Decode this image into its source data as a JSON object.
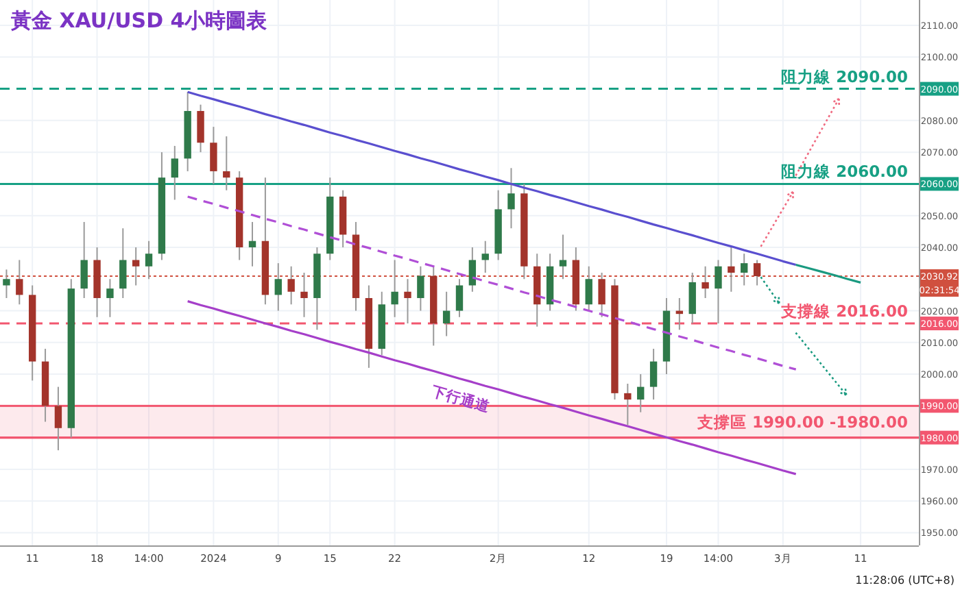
{
  "chart_data": {
    "type": "candlestick",
    "title": "黃金 XAU/USD 4小時圖表",
    "categories": [
      null,
      null,
      "11",
      null,
      null,
      null,
      null,
      "18",
      null,
      null,
      null,
      "14:00",
      null,
      null,
      null,
      null,
      "2024",
      null,
      null,
      null,
      null,
      "9",
      null,
      null,
      null,
      "15",
      null,
      null,
      null,
      null,
      "22",
      null,
      null,
      null,
      null,
      null,
      null,
      null,
      "2月",
      null,
      null,
      null,
      null,
      null,
      null,
      "12",
      null,
      null,
      null,
      null,
      null,
      "19",
      null,
      null,
      null,
      "14:00",
      null,
      null,
      null,
      null,
      "3月",
      null,
      null,
      null,
      null,
      null,
      "11",
      null,
      null,
      null,
      null
    ],
    "ohlc": [
      [
        2028,
        2033,
        2024,
        2030
      ],
      [
        2030,
        2036,
        2022,
        2025
      ],
      [
        2025,
        2028,
        1998,
        2004
      ],
      [
        2004,
        2008,
        1985,
        1990
      ],
      [
        1990,
        1996,
        1976,
        1983
      ],
      [
        1983,
        2030,
        1980,
        2027
      ],
      [
        2027,
        2048,
        2024,
        2036
      ],
      [
        2036,
        2040,
        2018,
        2024
      ],
      [
        2024,
        2030,
        2018,
        2027
      ],
      [
        2027,
        2046,
        2024,
        2036
      ],
      [
        2036,
        2040,
        2028,
        2034
      ],
      [
        2034,
        2042,
        2030,
        2038
      ],
      [
        2038,
        2070,
        2036,
        2062
      ],
      [
        2062,
        2072,
        2055,
        2068
      ],
      [
        2068,
        2089,
        2064,
        2083
      ],
      [
        2083,
        2085,
        2070,
        2073
      ],
      [
        2073,
        2078,
        2060,
        2064
      ],
      [
        2064,
        2075,
        2058,
        2062
      ],
      [
        2062,
        2064,
        2036,
        2040
      ],
      [
        2040,
        2048,
        2034,
        2042
      ],
      [
        2042,
        2062,
        2022,
        2025
      ],
      [
        2025,
        2035,
        2020,
        2030
      ],
      [
        2030,
        2034,
        2022,
        2026
      ],
      [
        2026,
        2032,
        2018,
        2024
      ],
      [
        2024,
        2040,
        2014,
        2038
      ],
      [
        2038,
        2062,
        2036,
        2056
      ],
      [
        2056,
        2058,
        2040,
        2044
      ],
      [
        2044,
        2048,
        2020,
        2024
      ],
      [
        2024,
        2028,
        2002,
        2008
      ],
      [
        2008,
        2026,
        2006,
        2022
      ],
      [
        2022,
        2036,
        2018,
        2026
      ],
      [
        2026,
        2030,
        2016,
        2024
      ],
      [
        2024,
        2034,
        2020,
        2031
      ],
      [
        2031,
        2034,
        2009,
        2016
      ],
      [
        2016,
        2026,
        2012,
        2020
      ],
      [
        2020,
        2030,
        2018,
        2028
      ],
      [
        2028,
        2040,
        2026,
        2036
      ],
      [
        2036,
        2042,
        2032,
        2038
      ],
      [
        2038,
        2058,
        2036,
        2052
      ],
      [
        2052,
        2065,
        2046,
        2057
      ],
      [
        2057,
        2060,
        2030,
        2034
      ],
      [
        2034,
        2038,
        2015,
        2022
      ],
      [
        2022,
        2038,
        2020,
        2034
      ],
      [
        2034,
        2044,
        2030,
        2036
      ],
      [
        2036,
        2040,
        2020,
        2022
      ],
      [
        2022,
        2034,
        2020,
        2030
      ],
      [
        2030,
        2032,
        2018,
        2022
      ],
      [
        2028,
        2030,
        1992,
        1994
      ],
      [
        1994,
        1997,
        1984,
        1992
      ],
      [
        1992,
        2000,
        1988,
        1996
      ],
      [
        1996,
        2008,
        1992,
        2004
      ],
      [
        2004,
        2024,
        2000,
        2020
      ],
      [
        2020,
        2024,
        2014,
        2019
      ],
      [
        2019,
        2032,
        2016,
        2029
      ],
      [
        2029,
        2034,
        2024,
        2027
      ],
      [
        2027,
        2036,
        2016,
        2034
      ],
      [
        2034,
        2040,
        2026,
        2032
      ],
      [
        2032,
        2038,
        2028,
        2035
      ],
      [
        2035,
        2036,
        2028,
        2030.92
      ],
      null,
      null,
      null,
      null,
      null,
      null,
      null,
      null,
      null,
      null,
      null,
      null
    ],
    "series": [
      {
        "type": "line",
        "color": "#5a4fcf",
        "line_style": "solid",
        "values": [
          null,
          null,
          null,
          null,
          null,
          null,
          null,
          null,
          null,
          null,
          null,
          null,
          null,
          null,
          2089.0,
          2087.8,
          2086.7,
          2085.5,
          2084.4,
          2083.2,
          2082.0,
          2080.9,
          2079.7,
          2078.6,
          2077.4,
          2076.2,
          2075.1,
          2073.9,
          2072.8,
          2071.6,
          2070.4,
          2069.3,
          2068.1,
          2067.0,
          2065.8,
          2064.6,
          2063.5,
          2062.3,
          2061.2,
          2060.0,
          2058.8,
          2057.7,
          2056.5,
          2055.4,
          2054.2,
          2053.0,
          2051.9,
          2050.7,
          2049.6,
          2048.4,
          2047.2,
          2046.1,
          2044.9,
          2043.8,
          2042.6,
          2041.4,
          2040.3,
          2039.1,
          2038.0,
          2036.8,
          2035.6,
          2034.5,
          null,
          null,
          null,
          null,
          null,
          null,
          null,
          null,
          null
        ]
      },
      {
        "type": "line",
        "color": "#b04fd6",
        "line_style": "dashed",
        "values": [
          null,
          null,
          null,
          null,
          null,
          null,
          null,
          null,
          null,
          null,
          null,
          null,
          null,
          null,
          2056.0,
          2054.8,
          2053.7,
          2052.5,
          2051.4,
          2050.2,
          2049.0,
          2047.9,
          2046.7,
          2045.6,
          2044.4,
          2043.2,
          2042.1,
          2040.9,
          2039.8,
          2038.6,
          2037.4,
          2036.3,
          2035.1,
          2034.0,
          2032.8,
          2031.6,
          2030.5,
          2029.3,
          2028.2,
          2027.0,
          2025.8,
          2024.7,
          2023.5,
          2022.4,
          2021.2,
          2020.0,
          2018.9,
          2017.7,
          2016.6,
          2015.4,
          2014.2,
          2013.1,
          2011.9,
          2010.8,
          2009.6,
          2008.4,
          2007.3,
          2006.1,
          2005.0,
          2003.8,
          2002.6,
          2001.5,
          null,
          null,
          null,
          null,
          null,
          null,
          null,
          null,
          null
        ]
      },
      {
        "type": "line",
        "color": "#a53fc9",
        "line_style": "solid",
        "values": [
          null,
          null,
          null,
          null,
          null,
          null,
          null,
          null,
          null,
          null,
          null,
          null,
          null,
          null,
          2023.0,
          2021.8,
          2020.7,
          2019.5,
          2018.4,
          2017.2,
          2016.0,
          2014.9,
          2013.7,
          2012.6,
          2011.4,
          2010.2,
          2009.1,
          2007.9,
          2006.8,
          2005.6,
          2004.4,
          2003.3,
          2002.1,
          2001.0,
          1999.8,
          1998.6,
          1997.5,
          1996.3,
          1995.2,
          1994.0,
          1992.8,
          1991.7,
          1990.5,
          1989.4,
          1988.2,
          1987.0,
          1985.9,
          1984.7,
          1983.6,
          1982.4,
          1981.2,
          1980.1,
          1978.9,
          1977.8,
          1976.6,
          1975.4,
          1974.3,
          1973.1,
          1972.0,
          1970.8,
          1969.6,
          1968.5,
          null,
          null,
          null,
          null,
          null,
          null,
          null,
          null,
          null
        ]
      },
      {
        "type": "line",
        "color": "#1a9a80",
        "line_style": "solid",
        "values": [
          null,
          null,
          null,
          null,
          null,
          null,
          null,
          null,
          null,
          null,
          null,
          null,
          null,
          null,
          null,
          null,
          null,
          null,
          null,
          null,
          null,
          null,
          null,
          null,
          null,
          null,
          null,
          null,
          null,
          null,
          null,
          null,
          null,
          null,
          null,
          null,
          null,
          null,
          null,
          null,
          null,
          null,
          null,
          null,
          null,
          null,
          null,
          null,
          null,
          null,
          null,
          null,
          null,
          null,
          null,
          null,
          null,
          null,
          null,
          null,
          null,
          2034.5,
          2033.4,
          2032.3,
          2031.2,
          2030.0,
          2028.9,
          null,
          null,
          null,
          null
        ]
      }
    ],
    "ylim": [
      1946,
      2118
    ],
    "yticks": [
      {
        "value": 1950,
        "label": "1950.00"
      },
      {
        "value": 1960,
        "label": "1960.00"
      },
      {
        "value": 1970,
        "label": "1970.00"
      },
      {
        "value": 1980,
        "label": "1980.00"
      },
      {
        "value": 1990,
        "label": "1990.00"
      },
      {
        "value": 2000,
        "label": "2000.00"
      },
      {
        "value": 2010,
        "label": "2010.00"
      },
      {
        "value": 2016,
        "label": "2016.00"
      },
      {
        "value": 2020,
        "label": "2020.00"
      },
      {
        "value": 2030.92,
        "label": "2030.92"
      },
      {
        "value": 2040,
        "label": "2040.00"
      },
      {
        "value": 2050,
        "label": "2050.00"
      },
      {
        "value": 2060,
        "label": "2060.00"
      },
      {
        "value": 2070,
        "label": "2070.00"
      },
      {
        "value": 2080,
        "label": "2080.00"
      },
      {
        "value": 2090,
        "label": "2090.00"
      },
      {
        "value": 2100,
        "label": "2100.00"
      },
      {
        "value": 2110,
        "label": "2110.00"
      }
    ],
    "grid": true,
    "ref_lines": [
      {
        "axis": "y",
        "value": 2090,
        "label": "阻力線 2090.00",
        "color": "#17a084",
        "line_style": "dashed"
      },
      {
        "axis": "y",
        "value": 2060,
        "label": "阻力線 2060.00",
        "color": "#17a084",
        "line_style": "solid"
      },
      {
        "axis": "y",
        "value": 2016,
        "label": "支撐線 2016.00",
        "color": "#f2566f",
        "line_style": "dashed"
      },
      {
        "axis": "y",
        "value": 1980,
        "color": "#f2566f",
        "line_style": "solid"
      },
      {
        "axis": "y",
        "value": 2030.92,
        "color": "#d0503f",
        "line_style": "dotted"
      }
    ],
    "bands": [
      {
        "axis": "y",
        "from": 1980,
        "to": 1990,
        "label": "支撐區 1990.00 -1980.00",
        "color": "#f2566f"
      }
    ],
    "annotations": [
      "下行通道",
      "11:28:06 (UTC+8)",
      {
        "text": "02:31:54",
        "y": 2030.92
      }
    ]
  }
}
